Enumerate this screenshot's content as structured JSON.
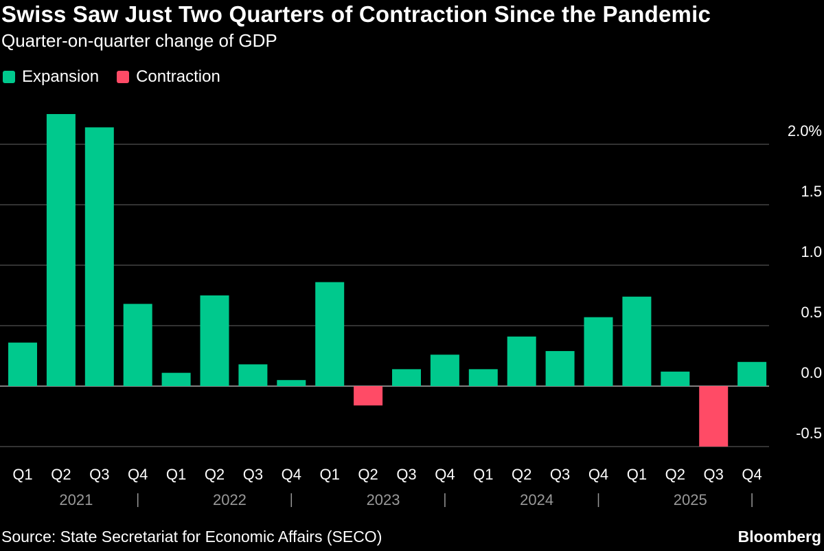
{
  "title": "Swiss Saw Just Two Quarters of Contraction Since the Pandemic",
  "subtitle": "Quarter-on-quarter change of GDP",
  "source": "Source: State Secretariat for Economic Affairs (SECO)",
  "brand": "Bloomberg",
  "colors": {
    "expansion": "#00c98d",
    "contraction": "#ff4b66",
    "grid": "#666666",
    "year_label": "#999999"
  },
  "chart_data": {
    "type": "bar",
    "title": "Swiss Saw Just Two Quarters of Contraction Since the Pandemic",
    "subtitle": "Quarter-on-quarter change of GDP",
    "legend": [
      {
        "name": "Expansion",
        "color": "#00c98d"
      },
      {
        "name": "Contraction",
        "color": "#ff4b66"
      }
    ],
    "legend_position": "top-left",
    "categories": [
      "Q1",
      "Q2",
      "Q3",
      "Q4",
      "Q1",
      "Q2",
      "Q3",
      "Q4",
      "Q1",
      "Q2",
      "Q3",
      "Q4",
      "Q1",
      "Q2",
      "Q3",
      "Q4",
      "Q1",
      "Q2",
      "Q3",
      "Q4"
    ],
    "years": [
      "2021",
      "2022",
      "2023",
      "2024",
      "2025"
    ],
    "values": [
      0.36,
      2.25,
      2.14,
      0.68,
      0.11,
      0.75,
      0.18,
      0.05,
      0.86,
      -0.16,
      0.14,
      0.26,
      0.14,
      0.41,
      0.29,
      0.57,
      0.74,
      0.12,
      -0.5,
      0.2
    ],
    "ylim": [
      -0.5,
      2.3
    ],
    "yticks": [
      -0.5,
      0.0,
      0.5,
      1.0,
      1.5,
      2.0
    ],
    "ytick_labels": [
      "-0.5",
      "0.0",
      "0.5",
      "1.0",
      "1.5",
      "2.0%"
    ],
    "y_axis_side": "right",
    "grid": true
  }
}
